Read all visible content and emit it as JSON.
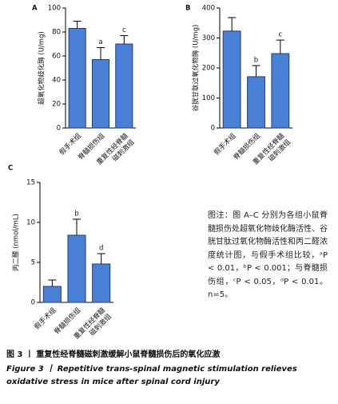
{
  "chart_data": [
    {
      "type": "bar",
      "panel": "A",
      "ylabel": "超氧化物歧化酶 (U/mg)",
      "categories": [
        "假手术组",
        "脊髓损伤组",
        "重复性经脊髓磁刺激组"
      ],
      "values": [
        83,
        57,
        70
      ],
      "errors": [
        6,
        10,
        7
      ],
      "annotations": [
        null,
        "a",
        "c"
      ],
      "color": "#4a7fd6",
      "ylim": [
        0,
        100
      ],
      "yticks": [
        0,
        20,
        40,
        60,
        80,
        100
      ]
    },
    {
      "type": "bar",
      "panel": "B",
      "ylabel": "谷胱甘肽过氧化物酶 (U/mg)",
      "categories": [
        "假手术组",
        "脊髓损伤组",
        "重复性经脊髓磁刺激组"
      ],
      "values": [
        323,
        171,
        248
      ],
      "errors": [
        45,
        37,
        45
      ],
      "annotations": [
        null,
        "b",
        "c"
      ],
      "color": "#4a7fd6",
      "ylim": [
        0,
        400
      ],
      "yticks": [
        0,
        100,
        200,
        300,
        400
      ]
    },
    {
      "type": "bar",
      "panel": "C",
      "ylabel": "丙二醛 (nmol/mL)",
      "categories": [
        "假手术组",
        "脊髓损伤组",
        "重复性经脊髓磁刺激组"
      ],
      "values": [
        2.0,
        8.4,
        4.8
      ],
      "errors": [
        0.8,
        2.0,
        1.3
      ],
      "annotations": [
        null,
        "b",
        "d"
      ],
      "color": "#4a7fd6",
      "ylim": [
        0,
        15
      ],
      "yticks": [
        0,
        5,
        10,
        15
      ]
    }
  ],
  "note": "图注：图 A–C 分别为各组小鼠脊髓损伤处超氧化物歧化酶活性、谷胱甘肽过氧化物酶活性和丙二醛浓度统计图，与假手术组比较，ᵃP < 0.01，ᵇP < 0.001；与脊髓损伤组，ᶜP < 0.05，ᵈP < 0.01。n=5。",
  "caption": {
    "zh": "图 3 丨 重复性经脊髓磁刺激缓解小鼠脊髓损伤后的氧化应激",
    "en": "Figure 3 丨 Repetitive trans-spinal magnetic stimulation relieves oxidative stress in mice after spinal cord injury"
  }
}
